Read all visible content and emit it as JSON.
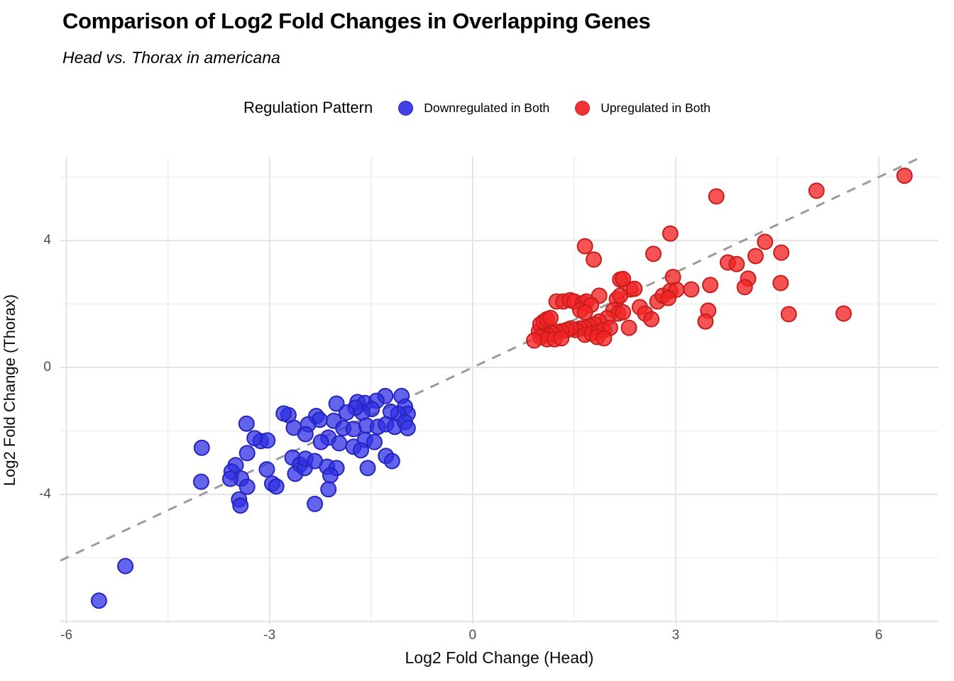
{
  "header": {
    "title": "Comparison of Log2 Fold Changes in Overlapping Genes",
    "subtitle": "Head vs. Thorax in americana"
  },
  "legend": {
    "title": "Regulation Pattern",
    "items": [
      {
        "label": "Downregulated in Both",
        "color": "#4040e8",
        "border": "#2a28b8"
      },
      {
        "label": "Upregulated in Both",
        "color": "#f23333",
        "border": "#c92222"
      }
    ]
  },
  "colors": {
    "grid_major": "#e3e3e3",
    "grid_minor": "#efefef",
    "reference_line": "#9c9c9c",
    "tick_label": "#4d4d4d",
    "down_fill": "rgba(47,47,229,0.75)",
    "down_stroke": "#2525bd",
    "up_fill": "rgba(242,36,36,0.78)",
    "up_stroke": "#c81d1d"
  },
  "chart_data": {
    "type": "scatter",
    "title": "Comparison of Log2 Fold Changes in Overlapping Genes",
    "subtitle": "Head vs. Thorax in americana",
    "xlabel": "Log2 Fold Change (Head)",
    "ylabel": "Log2 Fold Change (Thorax)",
    "xlim": [
      -6.09,
      6.88
    ],
    "ylim": [
      -8.07,
      6.64
    ],
    "x_ticks": [
      -6,
      -3,
      0,
      3,
      6
    ],
    "y_ticks": [
      -4,
      0,
      4
    ],
    "x_minor": [
      -4.5,
      -1.5,
      1.5,
      4.5
    ],
    "y_major_grid": [
      -8,
      -4,
      0,
      4
    ],
    "y_minor": [
      -6,
      -2,
      2,
      6
    ],
    "grid": true,
    "legend_position": "top",
    "reference_line": {
      "type": "identity",
      "slope": 1,
      "intercept": 0,
      "style": "dashed"
    },
    "point_radius_px": 10.5,
    "series": [
      {
        "name": "Downregulated in Both",
        "points": [
          [
            -3.34,
            -1.77
          ],
          [
            -2.72,
            -1.5
          ],
          [
            -2.79,
            -1.45
          ],
          [
            -4.0,
            -2.53
          ],
          [
            -3.33,
            -2.7
          ],
          [
            -3.13,
            -2.32
          ],
          [
            -3.03,
            -2.3
          ],
          [
            -3.22,
            -2.23
          ],
          [
            -3.5,
            -3.08
          ],
          [
            -3.56,
            -3.28
          ],
          [
            -3.42,
            -3.5
          ],
          [
            -3.58,
            -3.51
          ],
          [
            -4.01,
            -3.6
          ],
          [
            -3.33,
            -3.76
          ],
          [
            -3.04,
            -3.21
          ],
          [
            -2.96,
            -3.66
          ],
          [
            -2.9,
            -3.75
          ],
          [
            -3.45,
            -4.16
          ],
          [
            -3.43,
            -4.35
          ],
          [
            -2.64,
            -1.9
          ],
          [
            -2.66,
            -2.84
          ],
          [
            -2.55,
            -3.06
          ],
          [
            -2.62,
            -3.35
          ],
          [
            -2.48,
            -3.17
          ],
          [
            -2.01,
            -1.14
          ],
          [
            -1.7,
            -1.09
          ],
          [
            -1.59,
            -1.12
          ],
          [
            -1.29,
            -0.9
          ],
          [
            -1.05,
            -0.9
          ],
          [
            -1.42,
            -1.05
          ],
          [
            -1.0,
            -1.24
          ],
          [
            -0.96,
            -1.46
          ],
          [
            -1.1,
            -1.46
          ],
          [
            -1.21,
            -1.39
          ],
          [
            -1.49,
            -1.31
          ],
          [
            -1.63,
            -1.42
          ],
          [
            -1.73,
            -1.27
          ],
          [
            -1.86,
            -1.42
          ],
          [
            -2.31,
            -1.53
          ],
          [
            -2.26,
            -1.65
          ],
          [
            -2.43,
            -1.79
          ],
          [
            -2.05,
            -1.68
          ],
          [
            -1.91,
            -1.91
          ],
          [
            -1.76,
            -1.94
          ],
          [
            -1.57,
            -1.83
          ],
          [
            -1.4,
            -1.87
          ],
          [
            -1.28,
            -1.79
          ],
          [
            -1.15,
            -1.87
          ],
          [
            -1.0,
            -1.72
          ],
          [
            -0.96,
            -1.91
          ],
          [
            -2.13,
            -2.21
          ],
          [
            -2.24,
            -2.35
          ],
          [
            -1.97,
            -2.39
          ],
          [
            -1.76,
            -2.5
          ],
          [
            -1.59,
            -2.28
          ],
          [
            -1.45,
            -2.35
          ],
          [
            -1.65,
            -2.61
          ],
          [
            -2.47,
            -2.1
          ],
          [
            -2.47,
            -2.88
          ],
          [
            -2.33,
            -2.95
          ],
          [
            -2.15,
            -3.13
          ],
          [
            -2.01,
            -3.17
          ],
          [
            -2.1,
            -3.4
          ],
          [
            -1.55,
            -3.17
          ],
          [
            -1.28,
            -2.79
          ],
          [
            -1.19,
            -2.95
          ],
          [
            -2.13,
            -3.84
          ],
          [
            -2.33,
            -4.3
          ],
          [
            -5.13,
            -6.26
          ],
          [
            -5.52,
            -7.35
          ]
        ]
      },
      {
        "name": "Upregulated in Both",
        "points": [
          [
            2.18,
            2.77
          ],
          [
            2.33,
            2.46
          ],
          [
            2.39,
            2.48
          ],
          [
            1.87,
            2.26
          ],
          [
            1.24,
            2.08
          ],
          [
            1.34,
            2.08
          ],
          [
            1.44,
            2.12
          ],
          [
            1.5,
            2.08
          ],
          [
            1.63,
            2.03
          ],
          [
            1.68,
            2.08
          ],
          [
            1.75,
            1.97
          ],
          [
            1.59,
            1.81
          ],
          [
            1.66,
            1.74
          ],
          [
            2.13,
            2.15
          ],
          [
            2.18,
            2.26
          ],
          [
            2.08,
            1.81
          ],
          [
            2.15,
            1.7
          ],
          [
            2.22,
            1.74
          ],
          [
            1.99,
            1.56
          ],
          [
            1.87,
            1.45
          ],
          [
            1.8,
            1.36
          ],
          [
            1.73,
            1.3
          ],
          [
            1.66,
            1.25
          ],
          [
            1.59,
            1.23
          ],
          [
            1.52,
            1.18
          ],
          [
            1.45,
            1.23
          ],
          [
            1.39,
            1.18
          ],
          [
            1.31,
            1.14
          ],
          [
            1.24,
            1.12
          ],
          [
            1.18,
            1.07
          ],
          [
            1.1,
            1.03
          ],
          [
            1.03,
            1.07
          ],
          [
            0.98,
            1.14
          ],
          [
            1.0,
            1.36
          ],
          [
            1.05,
            1.45
          ],
          [
            1.1,
            1.52
          ],
          [
            1.15,
            1.56
          ],
          [
            1.0,
            0.96
          ],
          [
            1.1,
            0.89
          ],
          [
            1.21,
            0.89
          ],
          [
            1.31,
            0.92
          ],
          [
            1.66,
            1.03
          ],
          [
            1.76,
            1.07
          ],
          [
            1.86,
            1.12
          ],
          [
            1.94,
            1.18
          ],
          [
            2.03,
            1.25
          ],
          [
            2.47,
            1.9
          ],
          [
            2.55,
            1.7
          ],
          [
            2.64,
            1.52
          ],
          [
            2.73,
            2.08
          ],
          [
            2.81,
            2.26
          ],
          [
            2.92,
            2.41
          ],
          [
            3.01,
            2.45
          ],
          [
            2.31,
            1.25
          ],
          [
            0.91,
            0.85
          ],
          [
            1.84,
            0.96
          ],
          [
            1.94,
            0.92
          ],
          [
            2.96,
            2.85
          ],
          [
            2.89,
            2.19
          ],
          [
            3.6,
            5.39
          ],
          [
            2.92,
            4.22
          ],
          [
            1.66,
            3.82
          ],
          [
            1.79,
            3.4
          ],
          [
            2.67,
            3.58
          ],
          [
            2.22,
            2.79
          ],
          [
            3.77,
            3.31
          ],
          [
            3.9,
            3.26
          ],
          [
            6.38,
            6.04
          ],
          [
            5.08,
            5.57
          ],
          [
            4.32,
            3.96
          ],
          [
            4.56,
            3.62
          ],
          [
            4.18,
            3.51
          ],
          [
            4.07,
            2.8
          ],
          [
            4.02,
            2.53
          ],
          [
            4.55,
            2.66
          ],
          [
            4.67,
            1.68
          ],
          [
            5.48,
            1.7
          ],
          [
            3.23,
            2.46
          ],
          [
            3.51,
            2.6
          ],
          [
            3.48,
            1.79
          ],
          [
            3.44,
            1.45
          ]
        ]
      }
    ]
  }
}
